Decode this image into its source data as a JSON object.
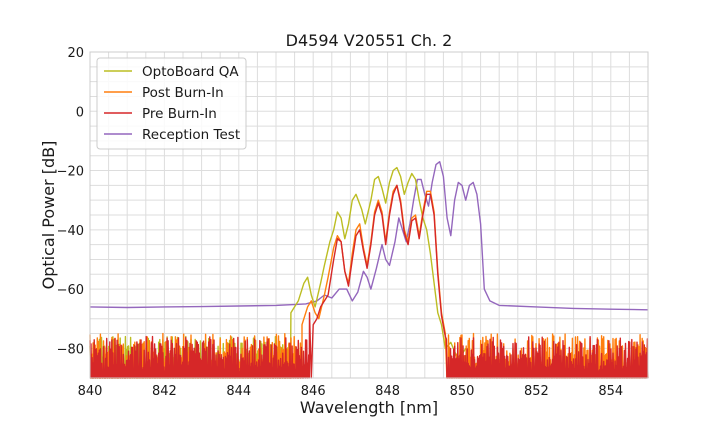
{
  "chart_data": {
    "type": "line",
    "title": "D4594 V20551 Ch. 2",
    "xlabel": "Wavelength [nm]",
    "ylabel": "Optical Power [dB]",
    "xlim": [
      840,
      855
    ],
    "ylim": [
      -90,
      20
    ],
    "xticks": [
      "840",
      "842",
      "844",
      "846",
      "848",
      "850",
      "852",
      "854"
    ],
    "yticks": [
      "20",
      "0",
      "−20",
      "−40",
      "−60",
      "−80"
    ],
    "grid": true,
    "legend_position": "top-left",
    "series": [
      {
        "name": "OptoBoard QA",
        "color": "#bcbd22",
        "noise_floor": {
          "x_range": [
            840,
            845.5
          ],
          "band": [
            -90,
            -76
          ]
        },
        "points": [
          [
            845.4,
            -68
          ],
          [
            845.6,
            -64
          ],
          [
            845.75,
            -58
          ],
          [
            845.85,
            -56
          ],
          [
            845.95,
            -62
          ],
          [
            846.05,
            -66
          ],
          [
            846.2,
            -58
          ],
          [
            846.3,
            -52
          ],
          [
            846.45,
            -44
          ],
          [
            846.55,
            -40
          ],
          [
            846.65,
            -34
          ],
          [
            846.75,
            -36
          ],
          [
            846.85,
            -43
          ],
          [
            846.95,
            -38
          ],
          [
            847.05,
            -30
          ],
          [
            847.15,
            -28
          ],
          [
            847.3,
            -33
          ],
          [
            847.4,
            -38
          ],
          [
            847.55,
            -30
          ],
          [
            847.65,
            -23
          ],
          [
            847.75,
            -22
          ],
          [
            847.85,
            -26
          ],
          [
            847.95,
            -31
          ],
          [
            848.05,
            -24
          ],
          [
            848.15,
            -20
          ],
          [
            848.25,
            -19
          ],
          [
            848.35,
            -22
          ],
          [
            848.45,
            -28
          ],
          [
            848.55,
            -24
          ],
          [
            848.65,
            -21
          ],
          [
            848.75,
            -23
          ],
          [
            848.85,
            -30
          ],
          [
            848.95,
            -36
          ],
          [
            849.05,
            -40
          ],
          [
            849.15,
            -48
          ],
          [
            849.25,
            -58
          ],
          [
            849.35,
            -68
          ],
          [
            849.45,
            -72
          ],
          [
            849.55,
            -80
          ],
          [
            849.7,
            -78
          ],
          [
            849.9,
            -84
          ],
          [
            850.1,
            -80
          ]
        ]
      },
      {
        "name": "Post Burn-In",
        "color": "#ff7f0e",
        "noise_floor": {
          "x_range": [
            840,
            855
          ],
          "band": [
            -90,
            -75
          ]
        },
        "points": [
          [
            845.7,
            -72
          ],
          [
            845.85,
            -66
          ],
          [
            845.95,
            -64
          ],
          [
            846.05,
            -68
          ],
          [
            846.15,
            -70
          ],
          [
            846.3,
            -62
          ],
          [
            846.4,
            -56
          ],
          [
            846.55,
            -46
          ],
          [
            846.65,
            -42
          ],
          [
            846.75,
            -44
          ],
          [
            846.85,
            -54
          ],
          [
            846.95,
            -58
          ],
          [
            847.05,
            -48
          ],
          [
            847.15,
            -40
          ],
          [
            847.25,
            -38
          ],
          [
            847.35,
            -46
          ],
          [
            847.45,
            -52
          ],
          [
            847.55,
            -44
          ],
          [
            847.65,
            -34
          ],
          [
            847.75,
            -30
          ],
          [
            847.85,
            -34
          ],
          [
            847.95,
            -44
          ],
          [
            848.05,
            -34
          ],
          [
            848.15,
            -27
          ],
          [
            848.25,
            -25
          ],
          [
            848.35,
            -30
          ],
          [
            848.45,
            -40
          ],
          [
            848.55,
            -44
          ],
          [
            848.65,
            -36
          ],
          [
            848.75,
            -35
          ],
          [
            848.85,
            -42
          ],
          [
            848.95,
            -34
          ],
          [
            849.05,
            -27
          ],
          [
            849.15,
            -27
          ],
          [
            849.25,
            -34
          ],
          [
            849.35,
            -54
          ],
          [
            849.45,
            -68
          ],
          [
            849.55,
            -75
          ]
        ]
      },
      {
        "name": "Pre Burn-In",
        "color": "#d62728",
        "noise_floor": {
          "x_range": [
            840,
            855
          ],
          "band": [
            -90,
            -76
          ]
        },
        "points": [
          [
            845.9,
            -68
          ],
          [
            845.95,
            -90
          ],
          [
            846.0,
            -72
          ],
          [
            846.1,
            -70
          ],
          [
            846.2,
            -66
          ],
          [
            846.3,
            -64
          ],
          [
            846.4,
            -62
          ],
          [
            846.55,
            -50
          ],
          [
            846.65,
            -43
          ],
          [
            846.75,
            -44
          ],
          [
            846.85,
            -54
          ],
          [
            846.95,
            -59
          ],
          [
            847.05,
            -50
          ],
          [
            847.15,
            -42
          ],
          [
            847.25,
            -40
          ],
          [
            847.35,
            -47
          ],
          [
            847.45,
            -53
          ],
          [
            847.55,
            -45
          ],
          [
            847.65,
            -35
          ],
          [
            847.75,
            -31
          ],
          [
            847.85,
            -35
          ],
          [
            847.95,
            -45
          ],
          [
            848.05,
            -35
          ],
          [
            848.15,
            -28
          ],
          [
            848.25,
            -25
          ],
          [
            848.35,
            -31
          ],
          [
            848.45,
            -41
          ],
          [
            848.55,
            -45
          ],
          [
            848.65,
            -37
          ],
          [
            848.75,
            -36
          ],
          [
            848.85,
            -43
          ],
          [
            848.95,
            -35
          ],
          [
            849.05,
            -28
          ],
          [
            849.15,
            -28
          ],
          [
            849.25,
            -35
          ],
          [
            849.35,
            -55
          ],
          [
            849.45,
            -69
          ],
          [
            849.55,
            -76
          ]
        ]
      },
      {
        "name": "Reception Test",
        "color": "#9467bd",
        "points": [
          [
            840,
            -66
          ],
          [
            841,
            -66.2
          ],
          [
            842,
            -66
          ],
          [
            843,
            -65.9
          ],
          [
            844,
            -65.7
          ],
          [
            845,
            -65.5
          ],
          [
            845.8,
            -65
          ],
          [
            846.1,
            -64
          ],
          [
            846.3,
            -62
          ],
          [
            846.5,
            -63
          ],
          [
            846.7,
            -60
          ],
          [
            846.9,
            -60
          ],
          [
            847.05,
            -64
          ],
          [
            847.2,
            -61
          ],
          [
            847.35,
            -54
          ],
          [
            847.45,
            -56
          ],
          [
            847.55,
            -60
          ],
          [
            847.7,
            -53
          ],
          [
            847.85,
            -45
          ],
          [
            847.95,
            -50
          ],
          [
            848.05,
            -52
          ],
          [
            848.2,
            -44
          ],
          [
            848.3,
            -36
          ],
          [
            848.4,
            -40
          ],
          [
            848.5,
            -44
          ],
          [
            848.6,
            -38
          ],
          [
            848.7,
            -30
          ],
          [
            848.8,
            -23
          ],
          [
            848.9,
            -23
          ],
          [
            849.0,
            -28
          ],
          [
            849.1,
            -32
          ],
          [
            849.2,
            -24
          ],
          [
            849.3,
            -18
          ],
          [
            849.4,
            -17
          ],
          [
            849.5,
            -22
          ],
          [
            849.6,
            -36
          ],
          [
            849.7,
            -42
          ],
          [
            849.8,
            -30
          ],
          [
            849.9,
            -24
          ],
          [
            850.0,
            -25
          ],
          [
            850.1,
            -30
          ],
          [
            850.2,
            -25
          ],
          [
            850.3,
            -24
          ],
          [
            850.4,
            -28
          ],
          [
            850.5,
            -38
          ],
          [
            850.6,
            -60
          ],
          [
            850.75,
            -64
          ],
          [
            851,
            -65.5
          ],
          [
            852,
            -66
          ],
          [
            853,
            -66.5
          ],
          [
            854,
            -66.8
          ],
          [
            855,
            -67
          ]
        ]
      }
    ]
  }
}
